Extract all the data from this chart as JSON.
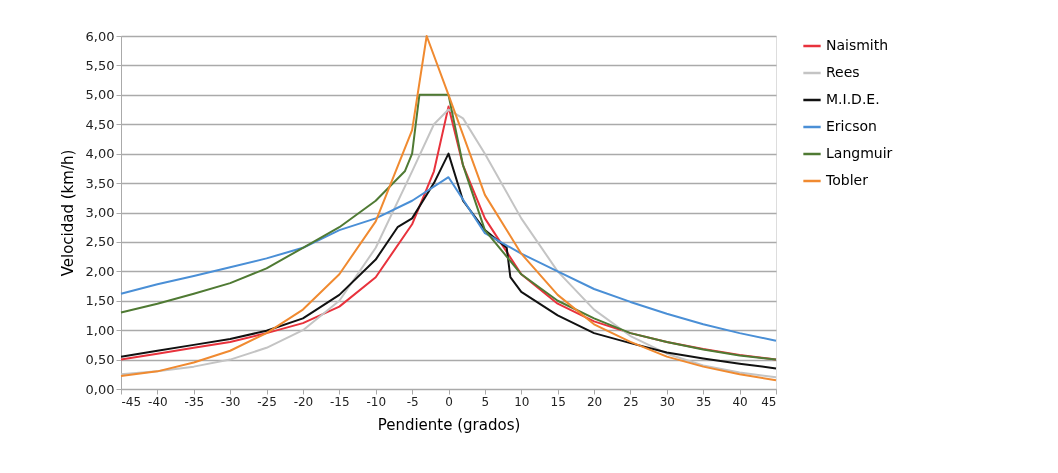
{
  "chart_data": {
    "type": "line",
    "xlabel": "Pendiente (grados)",
    "ylabel": "Velocidad (km/h)",
    "xlim": [
      -45,
      45
    ],
    "xticks": [
      -45,
      -40,
      -35,
      -30,
      -25,
      -20,
      -15,
      -10,
      -5,
      0,
      5,
      10,
      15,
      20,
      25,
      30,
      35,
      40,
      45
    ],
    "ylim": [
      0,
      6
    ],
    "yticks": [
      {
        "value": 0,
        "label": "0,00"
      },
      {
        "value": 0.5,
        "label": "0,50"
      },
      {
        "value": 1,
        "label": "1,00"
      },
      {
        "value": 1.5,
        "label": "1,50"
      },
      {
        "value": 2,
        "label": "2,00"
      },
      {
        "value": 2.5,
        "label": "2,50"
      },
      {
        "value": 3,
        "label": "3,00"
      },
      {
        "value": 3.5,
        "label": "3,50"
      },
      {
        "value": 4,
        "label": "4,00"
      },
      {
        "value": 4.5,
        "label": "4,50"
      },
      {
        "value": 5,
        "label": "5,00"
      },
      {
        "value": 5.5,
        "label": "5,50"
      },
      {
        "value": 6,
        "label": "6,00"
      }
    ],
    "grid": "y",
    "legend": "right",
    "marker": "none",
    "line_style": "solid",
    "series": [
      {
        "name": "Naismith",
        "color": "#e8323c",
        "x": [
          -45,
          -40,
          -35,
          -30,
          -25,
          -20,
          -15,
          -10,
          -5,
          -2,
          0,
          2,
          5,
          10,
          15,
          20,
          25,
          30,
          35,
          40,
          45
        ],
        "values": [
          0.5,
          0.6,
          0.7,
          0.8,
          0.95,
          1.12,
          1.4,
          1.9,
          2.8,
          3.7,
          4.8,
          3.8,
          2.9,
          1.95,
          1.45,
          1.15,
          0.95,
          0.8,
          0.68,
          0.58,
          0.5
        ]
      },
      {
        "name": "Rees",
        "color": "#c4c4c4",
        "x": [
          -45,
          -40,
          -35,
          -30,
          -25,
          -20,
          -15,
          -10,
          -5,
          -2,
          0,
          2,
          5,
          10,
          15,
          20,
          25,
          30,
          35,
          40,
          45
        ],
        "values": [
          0.25,
          0.3,
          0.38,
          0.5,
          0.7,
          1.0,
          1.5,
          2.4,
          3.7,
          4.5,
          4.75,
          4.6,
          4.0,
          2.9,
          2.0,
          1.35,
          0.9,
          0.6,
          0.4,
          0.28,
          0.2
        ]
      },
      {
        "name": "M.I.D.E.",
        "color": "#111111",
        "x": [
          -45,
          -40,
          -35,
          -30,
          -25,
          -20,
          -15,
          -10,
          -7,
          -5,
          -2,
          0,
          2,
          5,
          8,
          8.5,
          10,
          15,
          20,
          25,
          30,
          35,
          40,
          45
        ],
        "values": [
          0.55,
          0.65,
          0.75,
          0.85,
          0.99,
          1.2,
          1.6,
          2.2,
          2.75,
          2.9,
          3.5,
          4.0,
          3.2,
          2.7,
          2.4,
          1.9,
          1.65,
          1.25,
          0.95,
          0.78,
          0.62,
          0.52,
          0.43,
          0.35
        ]
      },
      {
        "name": "Ericson",
        "color": "#4a8fd6",
        "x": [
          -45,
          -40,
          -35,
          -30,
          -25,
          -20,
          -15,
          -10,
          -5,
          0,
          5,
          10,
          15,
          20,
          25,
          30,
          35,
          40,
          45
        ],
        "values": [
          1.62,
          1.78,
          1.92,
          2.07,
          2.22,
          2.4,
          2.7,
          2.9,
          3.2,
          3.6,
          2.65,
          2.3,
          2.0,
          1.7,
          1.48,
          1.28,
          1.1,
          0.95,
          0.82
        ]
      },
      {
        "name": "Langmuir",
        "color": "#4f7a33",
        "x": [
          -45,
          -40,
          -35,
          -30,
          -25,
          -20,
          -15,
          -10,
          -6,
          -5,
          -4,
          0,
          2,
          5,
          10,
          15,
          20,
          25,
          30,
          35,
          40,
          45
        ],
        "values": [
          1.3,
          1.45,
          1.62,
          1.8,
          2.05,
          2.4,
          2.75,
          3.2,
          3.7,
          4.0,
          5.0,
          5.0,
          3.8,
          2.7,
          1.95,
          1.5,
          1.2,
          0.95,
          0.8,
          0.67,
          0.57,
          0.5
        ]
      },
      {
        "name": "Tobler",
        "color": "#f08a30",
        "x": [
          -45,
          -40,
          -35,
          -30,
          -25,
          -20,
          -15,
          -10,
          -5,
          -3,
          0,
          5,
          10,
          15,
          20,
          25,
          30,
          35,
          40,
          45
        ],
        "values": [
          0.22,
          0.3,
          0.45,
          0.65,
          0.95,
          1.35,
          1.95,
          2.85,
          4.4,
          6.0,
          5.0,
          3.3,
          2.3,
          1.6,
          1.1,
          0.8,
          0.55,
          0.38,
          0.25,
          0.15
        ]
      }
    ]
  }
}
